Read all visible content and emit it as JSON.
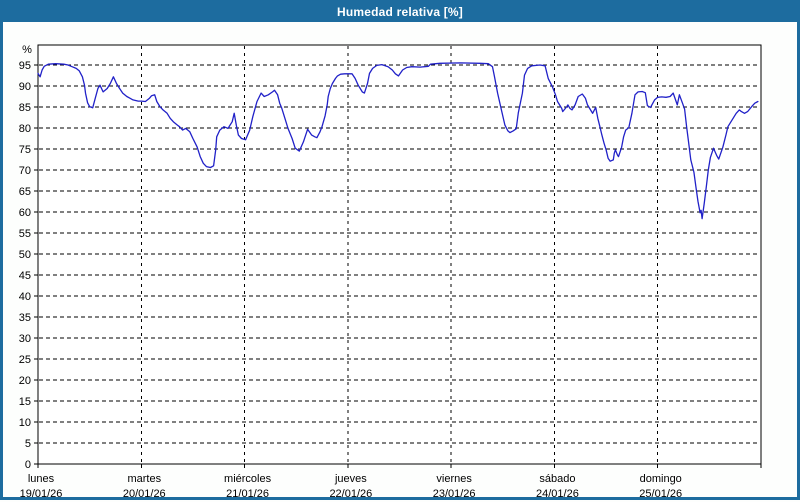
{
  "window": {
    "title": "Humedad relativa [%]"
  },
  "colors": {
    "frame": "#1D6C9F",
    "title_text": "#FFFFFF",
    "page_bg": "#FDFEFD",
    "plot_bg": "#FFFFFF",
    "grid": "#000000",
    "axis": "#000000",
    "line": "#2121C8"
  },
  "chart_data": {
    "type": "line",
    "title": "Humedad relativa [%]",
    "y_unit_label": "%",
    "ylim": [
      0,
      100
    ],
    "yticks": [
      0,
      5,
      10,
      15,
      20,
      25,
      30,
      35,
      40,
      45,
      50,
      55,
      60,
      65,
      70,
      75,
      80,
      85,
      90,
      95
    ],
    "grid": "dashed",
    "legend": "none",
    "x_days": [
      {
        "name": "lunes",
        "date": "19/01/26"
      },
      {
        "name": "martes",
        "date": "20/01/26"
      },
      {
        "name": "miércoles",
        "date": "21/01/26"
      },
      {
        "name": "jueves",
        "date": "22/01/26"
      },
      {
        "name": "viernes",
        "date": "23/01/26"
      },
      {
        "name": "sábado",
        "date": "24/01/26"
      },
      {
        "name": "domingo",
        "date": "25/01/26"
      }
    ],
    "series": [
      {
        "name": "Humedad relativa",
        "color": "#2121C8",
        "x_unit": "days_from_monday_00h",
        "points": [
          [
            0.0,
            93.0
          ],
          [
            0.02,
            92.2
          ],
          [
            0.04,
            93.8
          ],
          [
            0.06,
            94.7
          ],
          [
            0.1,
            95.2
          ],
          [
            0.17,
            95.3
          ],
          [
            0.25,
            95.2
          ],
          [
            0.29,
            95.0
          ],
          [
            0.33,
            94.6
          ],
          [
            0.37,
            94.2
          ],
          [
            0.4,
            93.6
          ],
          [
            0.43,
            92.2
          ],
          [
            0.45,
            90.2
          ],
          [
            0.46,
            88.3
          ],
          [
            0.48,
            86.0
          ],
          [
            0.5,
            85.1
          ],
          [
            0.53,
            84.8
          ],
          [
            0.55,
            86.7
          ],
          [
            0.58,
            89.4
          ],
          [
            0.6,
            90.2
          ],
          [
            0.63,
            88.6
          ],
          [
            0.67,
            89.4
          ],
          [
            0.7,
            90.6
          ],
          [
            0.73,
            92.2
          ],
          [
            0.76,
            90.6
          ],
          [
            0.79,
            89.4
          ],
          [
            0.82,
            88.3
          ],
          [
            0.86,
            87.5
          ],
          [
            0.89,
            87.1
          ],
          [
            0.92,
            86.7
          ],
          [
            0.97,
            86.4
          ],
          [
            1.0,
            86.4
          ],
          [
            1.04,
            86.3
          ],
          [
            1.08,
            87.1
          ],
          [
            1.1,
            87.7
          ],
          [
            1.13,
            87.9
          ],
          [
            1.15,
            86.3
          ],
          [
            1.18,
            85.1
          ],
          [
            1.21,
            84.3
          ],
          [
            1.25,
            83.5
          ],
          [
            1.28,
            82.3
          ],
          [
            1.31,
            81.5
          ],
          [
            1.35,
            80.7
          ],
          [
            1.37,
            80.3
          ],
          [
            1.4,
            79.5
          ],
          [
            1.43,
            79.9
          ],
          [
            1.47,
            79.1
          ],
          [
            1.5,
            77.5
          ],
          [
            1.54,
            75.5
          ],
          [
            1.57,
            73.2
          ],
          [
            1.6,
            71.6
          ],
          [
            1.63,
            70.8
          ],
          [
            1.67,
            70.6
          ],
          [
            1.7,
            71.0
          ],
          [
            1.72,
            74.8
          ],
          [
            1.73,
            77.9
          ],
          [
            1.76,
            79.5
          ],
          [
            1.8,
            80.3
          ],
          [
            1.84,
            79.9
          ],
          [
            1.88,
            81.5
          ],
          [
            1.9,
            83.5
          ],
          [
            1.92,
            80.7
          ],
          [
            1.94,
            78.3
          ],
          [
            1.97,
            77.5
          ],
          [
            2.01,
            77.2
          ],
          [
            2.05,
            79.5
          ],
          [
            2.08,
            82.7
          ],
          [
            2.12,
            86.3
          ],
          [
            2.16,
            88.3
          ],
          [
            2.19,
            87.5
          ],
          [
            2.23,
            87.9
          ],
          [
            2.27,
            88.6
          ],
          [
            2.29,
            89.0
          ],
          [
            2.32,
            87.9
          ],
          [
            2.34,
            85.9
          ],
          [
            2.36,
            84.7
          ],
          [
            2.39,
            82.3
          ],
          [
            2.42,
            79.9
          ],
          [
            2.46,
            77.5
          ],
          [
            2.49,
            75.2
          ],
          [
            2.53,
            74.5
          ],
          [
            2.57,
            76.7
          ],
          [
            2.61,
            79.7
          ],
          [
            2.65,
            78.3
          ],
          [
            2.68,
            77.9
          ],
          [
            2.7,
            77.7
          ],
          [
            2.73,
            79.1
          ],
          [
            2.75,
            80.3
          ],
          [
            2.78,
            82.9
          ],
          [
            2.8,
            85.5
          ],
          [
            2.81,
            87.5
          ],
          [
            2.83,
            89.4
          ],
          [
            2.85,
            90.6
          ],
          [
            2.88,
            91.8
          ],
          [
            2.9,
            92.4
          ],
          [
            2.93,
            92.8
          ],
          [
            2.97,
            92.9
          ],
          [
            3.04,
            92.9
          ],
          [
            3.07,
            91.8
          ],
          [
            3.1,
            90.2
          ],
          [
            3.14,
            88.6
          ],
          [
            3.16,
            88.3
          ],
          [
            3.19,
            90.6
          ],
          [
            3.21,
            93.0
          ],
          [
            3.24,
            94.2
          ],
          [
            3.28,
            94.9
          ],
          [
            3.33,
            95.1
          ],
          [
            3.39,
            94.6
          ],
          [
            3.43,
            93.8
          ],
          [
            3.46,
            92.9
          ],
          [
            3.49,
            92.4
          ],
          [
            3.53,
            93.8
          ],
          [
            3.57,
            94.4
          ],
          [
            3.62,
            94.6
          ],
          [
            3.7,
            94.5
          ],
          [
            3.78,
            94.7
          ],
          [
            3.8,
            95.2
          ],
          [
            3.89,
            95.4
          ],
          [
            4.09,
            95.5
          ],
          [
            4.28,
            95.4
          ],
          [
            4.36,
            95.3
          ],
          [
            4.4,
            94.6
          ],
          [
            4.42,
            92.2
          ],
          [
            4.45,
            88.3
          ],
          [
            4.49,
            83.9
          ],
          [
            4.52,
            80.7
          ],
          [
            4.55,
            79.3
          ],
          [
            4.57,
            78.9
          ],
          [
            4.6,
            79.3
          ],
          [
            4.63,
            79.8
          ],
          [
            4.65,
            83.6
          ],
          [
            4.69,
            88.3
          ],
          [
            4.71,
            92.6
          ],
          [
            4.74,
            94.2
          ],
          [
            4.78,
            94.8
          ],
          [
            4.86,
            95.0
          ],
          [
            4.91,
            94.8
          ],
          [
            4.94,
            91.8
          ],
          [
            4.98,
            89.8
          ],
          [
            5.01,
            87.9
          ],
          [
            5.03,
            86.3
          ],
          [
            5.07,
            84.7
          ],
          [
            5.08,
            83.9
          ],
          [
            5.12,
            85.1
          ],
          [
            5.13,
            85.5
          ],
          [
            5.15,
            84.7
          ],
          [
            5.17,
            84.3
          ],
          [
            5.2,
            85.5
          ],
          [
            5.23,
            87.5
          ],
          [
            5.27,
            88.1
          ],
          [
            5.3,
            87.1
          ],
          [
            5.32,
            85.5
          ],
          [
            5.36,
            83.9
          ],
          [
            5.37,
            83.5
          ],
          [
            5.4,
            84.9
          ],
          [
            5.42,
            82.3
          ],
          [
            5.44,
            80.3
          ],
          [
            5.46,
            78.3
          ],
          [
            5.48,
            76.4
          ],
          [
            5.5,
            74.8
          ],
          [
            5.52,
            72.8
          ],
          [
            5.54,
            72.1
          ],
          [
            5.57,
            72.4
          ],
          [
            5.58,
            74.0
          ],
          [
            5.59,
            74.8
          ],
          [
            5.61,
            73.6
          ],
          [
            5.62,
            73.2
          ],
          [
            5.65,
            75.4
          ],
          [
            5.67,
            77.9
          ],
          [
            5.69,
            79.5
          ],
          [
            5.72,
            80.1
          ],
          [
            5.75,
            83.5
          ],
          [
            5.78,
            87.9
          ],
          [
            5.81,
            88.6
          ],
          [
            5.85,
            88.7
          ],
          [
            5.88,
            88.4
          ],
          [
            5.9,
            85.3
          ],
          [
            5.93,
            84.9
          ],
          [
            5.97,
            86.7
          ],
          [
            6.0,
            87.3
          ],
          [
            6.04,
            87.4
          ],
          [
            6.08,
            87.3
          ],
          [
            6.12,
            87.5
          ],
          [
            6.15,
            88.3
          ],
          [
            6.19,
            85.5
          ],
          [
            6.21,
            87.9
          ],
          [
            6.24,
            85.9
          ],
          [
            6.26,
            84.5
          ],
          [
            6.28,
            80.3
          ],
          [
            6.3,
            76.4
          ],
          [
            6.32,
            72.4
          ],
          [
            6.35,
            69.5
          ],
          [
            6.37,
            66.0
          ],
          [
            6.39,
            62.5
          ],
          [
            6.41,
            59.8
          ],
          [
            6.42,
            60.4
          ],
          [
            6.43,
            58.4
          ],
          [
            6.45,
            62.0
          ],
          [
            6.47,
            66.0
          ],
          [
            6.49,
            70.0
          ],
          [
            6.51,
            73.0
          ],
          [
            6.54,
            75.2
          ],
          [
            6.57,
            73.5
          ],
          [
            6.59,
            72.6
          ],
          [
            6.63,
            75.4
          ],
          [
            6.66,
            78.3
          ],
          [
            6.68,
            80.3
          ],
          [
            6.71,
            81.5
          ],
          [
            6.74,
            82.7
          ],
          [
            6.76,
            83.5
          ],
          [
            6.79,
            84.3
          ],
          [
            6.81,
            83.9
          ],
          [
            6.84,
            83.5
          ],
          [
            6.87,
            83.9
          ],
          [
            6.91,
            85.1
          ],
          [
            6.94,
            85.9
          ],
          [
            6.97,
            86.3
          ]
        ]
      }
    ]
  }
}
